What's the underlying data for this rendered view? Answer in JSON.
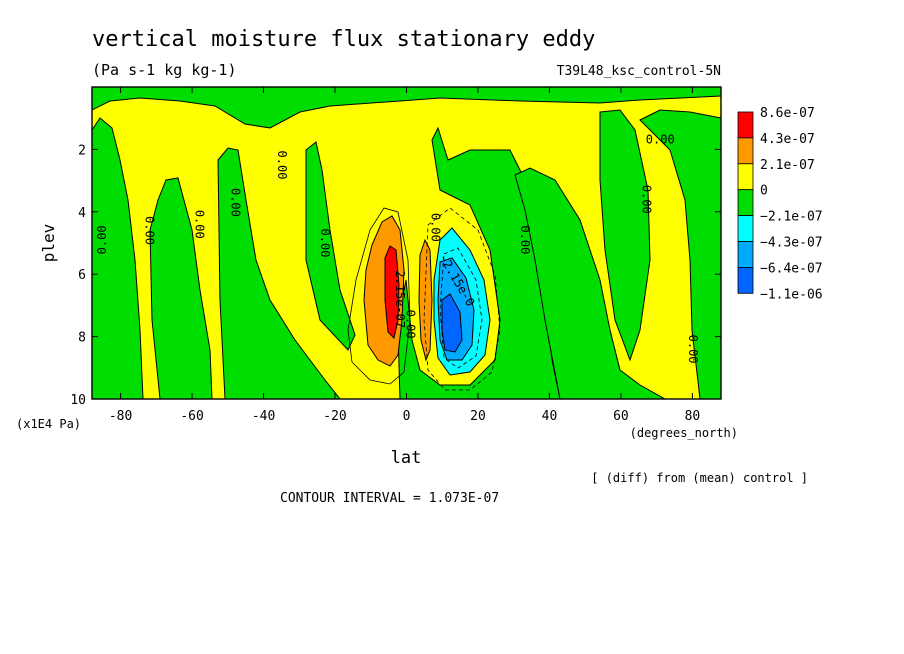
{
  "chart_data": {
    "type": "heatmap",
    "title": "vertical moisture flux stationary eddy",
    "units": "(Pa s-1 kg kg-1)",
    "run_label": "T39L48_ksc_control-5N",
    "xlabel": "lat",
    "x_unit": "(degrees_north)",
    "ylabel": "plev",
    "y_unit": "(x1E4 Pa)",
    "xlim": [
      -88,
      88
    ],
    "ylim": [
      0,
      10
    ],
    "y_inverted": true,
    "x_ticks": [
      -80,
      -60,
      -40,
      -20,
      0,
      20,
      40,
      60,
      80
    ],
    "x_tick_labels": [
      "-80",
      "-60",
      "-40",
      "-20",
      "0",
      "20",
      "40",
      "60",
      "80"
    ],
    "y_ticks": [
      2,
      4,
      6,
      8,
      10
    ],
    "y_tick_labels": [
      "2",
      "4",
      "6",
      "8",
      "10"
    ],
    "legend": {
      "placement": "right",
      "levels": [
        {
          "label": "8.6e-07",
          "color": "#ff0000"
        },
        {
          "label": "4.3e-07",
          "color": "#ff9900"
        },
        {
          "label": "2.1e-07",
          "color": "#ffff00"
        },
        {
          "label": "0",
          "color": "#00dd00"
        },
        {
          "label": "−2.1e-07",
          "color": "#00ffff"
        },
        {
          "label": "−4.3e-07",
          "color": "#00aaff"
        },
        {
          "label": "−6.4e-07",
          "color": "#0066ff"
        },
        {
          "label": "−1.1e-06",
          "color": null
        }
      ]
    },
    "contour_labels": [
      {
        "text": "0.00",
        "lat": -85,
        "plev": 4.9,
        "rot": -90
      },
      {
        "text": "0.00",
        "lat": -72,
        "plev": 4.6,
        "rot": 90
      },
      {
        "text": "0.00",
        "lat": -58,
        "plev": 4.4,
        "rot": 90
      },
      {
        "text": "0.00",
        "lat": -48,
        "plev": 3.7,
        "rot": 90
      },
      {
        "text": "0.00",
        "lat": -35,
        "plev": 2.5,
        "rot": 90
      },
      {
        "text": "0.00",
        "lat": -23,
        "plev": 5.0,
        "rot": 90
      },
      {
        "text": "2.15e-07",
        "lat": -2,
        "plev": 6.8,
        "rot": 90
      },
      {
        "text": "0.00",
        "lat": 1,
        "plev": 7.6,
        "rot": 90
      },
      {
        "text": "0.00",
        "lat": 8,
        "plev": 4.5,
        "rot": 90
      },
      {
        "text": "-2.15e-0",
        "lat": 14,
        "plev": 6.2,
        "rot": 60
      },
      {
        "text": "0.00",
        "lat": 33,
        "plev": 4.9,
        "rot": 90
      },
      {
        "text": "0.00",
        "lat": 67,
        "plev": 3.6,
        "rot": 90
      },
      {
        "text": "0.00",
        "lat": 71,
        "plev": 1.7,
        "rot": 0
      },
      {
        "text": "0.00",
        "lat": 80,
        "plev": 8.4,
        "rot": 90
      }
    ],
    "footer_left": "CONTOUR INTERVAL = 1.073E-07",
    "footer_right": "[ (diff) from (mean) control ]"
  }
}
